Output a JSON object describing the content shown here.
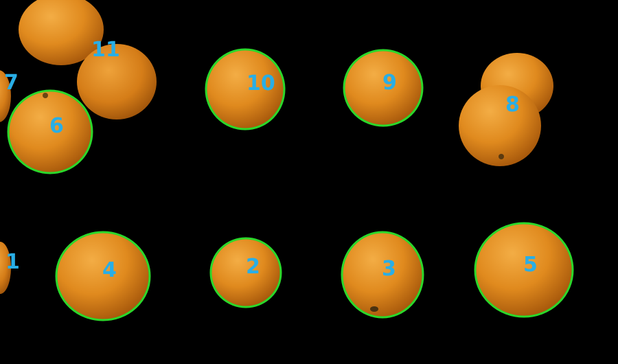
{
  "colors": {
    "background": "#000000",
    "outline": "#2bd82b",
    "label": "#29aee6",
    "orange_light": "#f2a63a",
    "orange_mid": "#e08a1e",
    "orange_dark": "#a95a0c"
  },
  "fruits": [
    {
      "id": "1",
      "label": "1",
      "detected": false
    },
    {
      "id": "2",
      "label": "2",
      "detected": true
    },
    {
      "id": "3",
      "label": "3",
      "detected": true
    },
    {
      "id": "4",
      "label": "4",
      "detected": true
    },
    {
      "id": "5",
      "label": "5",
      "detected": true
    },
    {
      "id": "6",
      "label": "6",
      "detected": true
    },
    {
      "id": "7",
      "label": "7",
      "detected": false
    },
    {
      "id": "8",
      "label": "8",
      "detected": false
    },
    {
      "id": "9",
      "label": "9",
      "detected": true
    },
    {
      "id": "10",
      "label": "10",
      "detected": true
    },
    {
      "id": "11",
      "label": "11",
      "detected": false
    }
  ]
}
